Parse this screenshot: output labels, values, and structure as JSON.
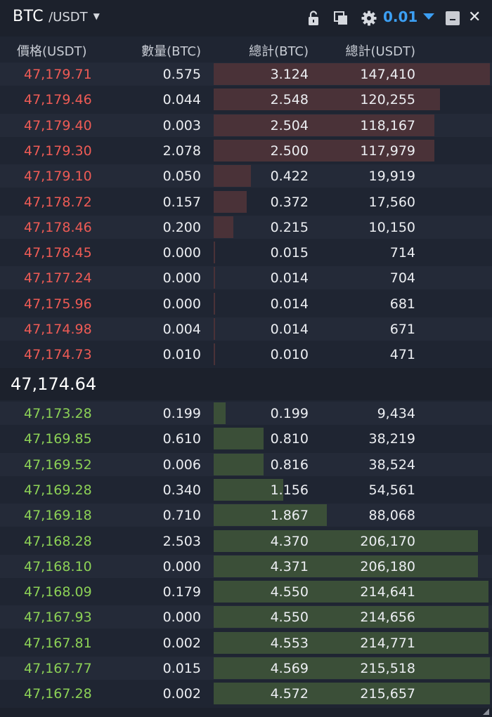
{
  "header": {
    "base": "BTC",
    "quote": "/USDT",
    "precision": "0.01",
    "close_symbol": "✕"
  },
  "columns": {
    "price": "價格(USDT)",
    "amount": "數量(BTC)",
    "total_btc": "總計(BTC)",
    "total_usdt": "總計(USDT)"
  },
  "asks": [
    {
      "price": "47,179.71",
      "amount": "0.575",
      "total_btc": "3.124",
      "total_usdt": "147,410",
      "depth": 1.0
    },
    {
      "price": "47,179.46",
      "amount": "0.044",
      "total_btc": "2.548",
      "total_usdt": "120,255",
      "depth": 0.82
    },
    {
      "price": "47,179.40",
      "amount": "0.003",
      "total_btc": "2.504",
      "total_usdt": "118,167",
      "depth": 0.8
    },
    {
      "price": "47,179.30",
      "amount": "2.078",
      "total_btc": "2.500",
      "total_usdt": "117,979",
      "depth": 0.8
    },
    {
      "price": "47,179.10",
      "amount": "0.050",
      "total_btc": "0.422",
      "total_usdt": "19,919",
      "depth": 0.135
    },
    {
      "price": "47,178.72",
      "amount": "0.157",
      "total_btc": "0.372",
      "total_usdt": "17,560",
      "depth": 0.12
    },
    {
      "price": "47,178.46",
      "amount": "0.200",
      "total_btc": "0.215",
      "total_usdt": "10,150",
      "depth": 0.07
    },
    {
      "price": "47,178.45",
      "amount": "0.000",
      "total_btc": "0.015",
      "total_usdt": "714",
      "depth": 0.006
    },
    {
      "price": "47,177.24",
      "amount": "0.000",
      "total_btc": "0.014",
      "total_usdt": "704",
      "depth": 0.006
    },
    {
      "price": "47,175.96",
      "amount": "0.000",
      "total_btc": "0.014",
      "total_usdt": "681",
      "depth": 0.006
    },
    {
      "price": "47,174.98",
      "amount": "0.004",
      "total_btc": "0.014",
      "total_usdt": "671",
      "depth": 0.006
    },
    {
      "price": "47,174.73",
      "amount": "0.010",
      "total_btc": "0.010",
      "total_usdt": "471",
      "depth": 0.006
    }
  ],
  "last_price": "47,174.64",
  "bids": [
    {
      "price": "47,173.28",
      "amount": "0.199",
      "total_btc": "0.199",
      "total_usdt": "9,434",
      "depth": 0.044
    },
    {
      "price": "47,169.85",
      "amount": "0.610",
      "total_btc": "0.810",
      "total_usdt": "38,219",
      "depth": 0.18
    },
    {
      "price": "47,169.52",
      "amount": "0.006",
      "total_btc": "0.816",
      "total_usdt": "38,524",
      "depth": 0.18
    },
    {
      "price": "47,169.28",
      "amount": "0.340",
      "total_btc": "1.156",
      "total_usdt": "54,561",
      "depth": 0.253
    },
    {
      "price": "47,169.18",
      "amount": "0.710",
      "total_btc": "1.867",
      "total_usdt": "88,068",
      "depth": 0.41
    },
    {
      "price": "47,168.28",
      "amount": "2.503",
      "total_btc": "4.370",
      "total_usdt": "206,170",
      "depth": 0.956
    },
    {
      "price": "47,168.10",
      "amount": "0.000",
      "total_btc": "4.371",
      "total_usdt": "206,180",
      "depth": 0.956
    },
    {
      "price": "47,168.09",
      "amount": "0.179",
      "total_btc": "4.550",
      "total_usdt": "214,641",
      "depth": 0.995
    },
    {
      "price": "47,167.93",
      "amount": "0.000",
      "total_btc": "4.550",
      "total_usdt": "214,656",
      "depth": 0.995
    },
    {
      "price": "47,167.81",
      "amount": "0.002",
      "total_btc": "4.553",
      "total_usdt": "214,771",
      "depth": 0.996
    },
    {
      "price": "47,167.77",
      "amount": "0.015",
      "total_btc": "4.569",
      "total_usdt": "215,518",
      "depth": 0.999
    },
    {
      "price": "47,167.28",
      "amount": "0.002",
      "total_btc": "4.572",
      "total_usdt": "215,657",
      "depth": 1.0
    }
  ],
  "colors": {
    "ask_price": "#ee5b55",
    "bid_price": "#8cd156",
    "accent": "#3c9ff3",
    "ask_bar": "#4a3238",
    "bid_bar": "#3b4f38"
  },
  "icons": [
    "lock-open-icon",
    "copy-icon",
    "gear-icon",
    "caret-down-icon",
    "minimize-icon",
    "close-icon",
    "resize-grip-icon"
  ]
}
